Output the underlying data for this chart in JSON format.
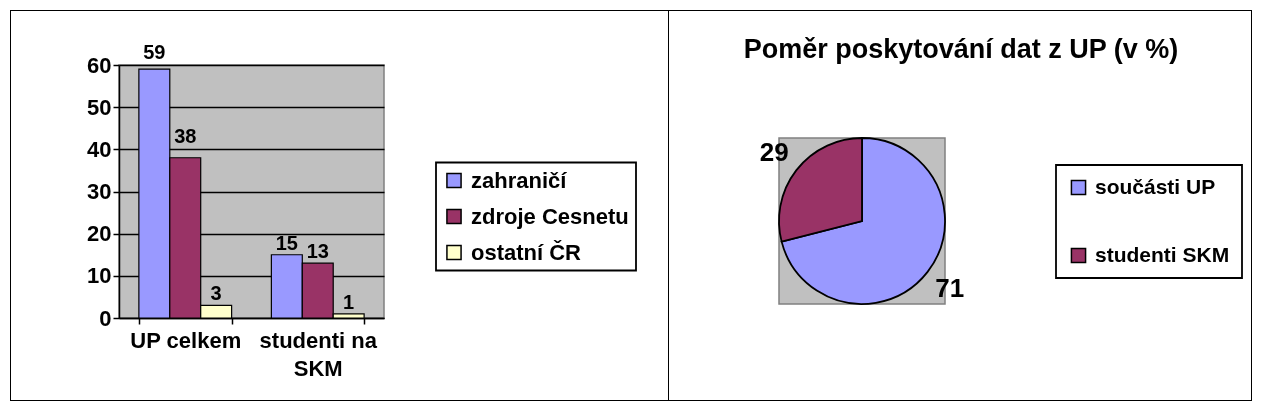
{
  "chart_data": [
    {
      "type": "bar",
      "categories": [
        "UP celkem",
        "studenti na SKM"
      ],
      "series": [
        {
          "name": "zahraničí",
          "color": "#9999ff",
          "values": [
            59,
            15
          ]
        },
        {
          "name": "zdroje Cesnetu",
          "color": "#993366",
          "values": [
            38,
            13
          ]
        },
        {
          "name": "ostatní ČR",
          "color": "#ffffcc",
          "values": [
            3,
            1
          ]
        }
      ],
      "ylim": [
        0,
        60
      ],
      "yticks": [
        0,
        10,
        20,
        30,
        40,
        50,
        60
      ],
      "grid": "y",
      "legend": "right",
      "data_labels": true
    },
    {
      "type": "pie",
      "title": "Poměr poskytování dat z UP (v %)",
      "categories": [
        "součásti UP",
        "studenti SKM"
      ],
      "values": [
        71,
        29
      ],
      "colors": [
        "#9999ff",
        "#993366"
      ],
      "legend": "right",
      "data_labels": true
    }
  ]
}
